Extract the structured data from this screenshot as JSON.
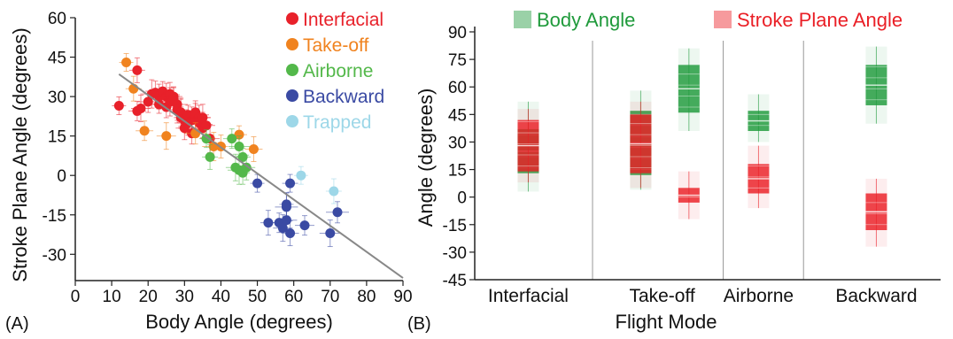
{
  "panel_a_label": "(A)",
  "panel_b_label": "(B)",
  "chart_data": [
    {
      "type": "scatter",
      "xlabel": "Body Angle (degrees)",
      "ylabel": "Stroke Plane Angle (degrees)",
      "xlim": [
        0,
        90
      ],
      "ylim": [
        -40,
        60
      ],
      "x_ticks": [
        "0",
        "10",
        "20",
        "30",
        "40",
        "50",
        "60",
        "70",
        "80",
        "90"
      ],
      "y_ticks": [
        "60",
        "45",
        "30",
        "15",
        "0",
        "-15",
        "-30"
      ],
      "legend_position": "top-right",
      "series": [
        {
          "name": "Interfacial",
          "color": "#e8212a",
          "points": [
            [
              12,
              26.5
            ],
            [
              17,
              40
            ],
            [
              17,
              24.5
            ],
            [
              18,
              25.5
            ],
            [
              20,
              28
            ],
            [
              21,
              31
            ],
            [
              22,
              31.5
            ],
            [
              23,
              27
            ],
            [
              23,
              30
            ],
            [
              24,
              32
            ],
            [
              25,
              30
            ],
            [
              25,
              26
            ],
            [
              26,
              28
            ],
            [
              26,
              31
            ],
            [
              27,
              30
            ],
            [
              27,
              29
            ],
            [
              28,
              27
            ],
            [
              28,
              25
            ],
            [
              29,
              22
            ],
            [
              29,
              24
            ],
            [
              30,
              18
            ],
            [
              30,
              21
            ],
            [
              31,
              20
            ],
            [
              31,
              23
            ],
            [
              32,
              21
            ],
            [
              32,
              16
            ],
            [
              33,
              22
            ],
            [
              33,
              24
            ],
            [
              34,
              20
            ],
            [
              34,
              22
            ],
            [
              35,
              18
            ],
            [
              35,
              22
            ],
            [
              36,
              19
            ],
            [
              37,
              14
            ]
          ]
        },
        {
          "name": "Take-off",
          "color": "#f0831f",
          "points": [
            [
              14,
              43
            ],
            [
              16,
              33
            ],
            [
              19,
              17
            ],
            [
              25,
              15
            ],
            [
              33,
              16
            ],
            [
              38,
              11
            ],
            [
              40,
              11
            ],
            [
              45,
              15.5
            ],
            [
              49,
              10
            ]
          ]
        },
        {
          "name": "Airborne",
          "color": "#53b84a",
          "points": [
            [
              36,
              14
            ],
            [
              37,
              7
            ],
            [
              43,
              14
            ],
            [
              44,
              3
            ],
            [
              45,
              11
            ],
            [
              45,
              2
            ],
            [
              46,
              1
            ],
            [
              46,
              7
            ],
            [
              47,
              3
            ]
          ]
        },
        {
          "name": "Backward",
          "color": "#3a4aa3",
          "points": [
            [
              50,
              -3
            ],
            [
              53,
              -18
            ],
            [
              56,
              -18
            ],
            [
              57,
              -20
            ],
            [
              58,
              -17
            ],
            [
              58,
              -12
            ],
            [
              58,
              -11
            ],
            [
              59,
              -3
            ],
            [
              59,
              -22
            ],
            [
              63,
              -19
            ],
            [
              70,
              -22
            ],
            [
              72,
              -14
            ]
          ]
        },
        {
          "name": "Trapped",
          "color": "#9dd7e8",
          "points": [
            [
              62,
              0
            ],
            [
              71,
              -6
            ]
          ]
        }
      ],
      "trend_line": {
        "color": "#888888",
        "from": [
          12,
          38.5
        ],
        "to": [
          90,
          -39
        ]
      }
    },
    {
      "type": "box",
      "xlabel": "Flight Mode",
      "ylabel": "Angle (degrees)",
      "ylim": [
        -45,
        90
      ],
      "y_ticks": [
        "90",
        "75",
        "60",
        "45",
        "30",
        "15",
        "0",
        "-15",
        "-30",
        "-45"
      ],
      "categories": [
        "Interfacial",
        "Take-off",
        "Airborne",
        "Backward"
      ],
      "legend_position": "top",
      "series": [
        {
          "name": "Body Angle",
          "color": "#1f9a3b",
          "label_color": "#1f9a3b",
          "boxes": [
            {
              "group": "Interfacial",
              "x": 0.5,
              "q1": 13,
              "q3": 37,
              "min": 3,
              "max": 52
            },
            {
              "group": "Take-off",
              "x": 1.55,
              "q1": 12,
              "q3": 47,
              "min": 4,
              "max": 58
            },
            {
              "group": "Take-off",
              "x": 2.0,
              "q1": 46,
              "q3": 72,
              "min": 36,
              "max": 81
            },
            {
              "group": "Airborne",
              "x": 2.65,
              "q1": 36,
              "q3": 47,
              "min": 30,
              "max": 56
            },
            {
              "group": "Backward",
              "x": 3.75,
              "q1": 50,
              "q3": 72,
              "min": 40,
              "max": 82
            }
          ]
        },
        {
          "name": "Stroke Plane Angle",
          "color": "#ea1f26",
          "label_color": "#ea1f26",
          "boxes": [
            {
              "group": "Interfacial",
              "x": 0.5,
              "q1": 14,
              "q3": 42,
              "min": 8,
              "max": 48
            },
            {
              "group": "Take-off",
              "x": 1.55,
              "q1": 13,
              "q3": 45,
              "min": 5,
              "max": 52
            },
            {
              "group": "Take-off",
              "x": 2.0,
              "q1": -3,
              "q3": 5,
              "min": -12,
              "max": 14
            },
            {
              "group": "Airborne",
              "x": 2.65,
              "q1": 2,
              "q3": 18,
              "min": -6,
              "max": 28
            },
            {
              "group": "Backward",
              "x": 3.75,
              "q1": -18,
              "q3": 2,
              "min": -27,
              "max": 10
            }
          ]
        }
      ]
    }
  ]
}
